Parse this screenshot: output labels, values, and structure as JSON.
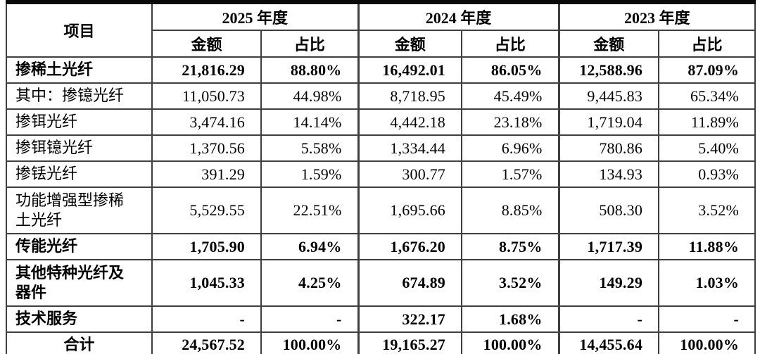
{
  "table": {
    "header": {
      "item_label": "项目",
      "year_groups": [
        {
          "label": "2025 年度"
        },
        {
          "label": "2024 年度"
        },
        {
          "label": "2023 年度"
        }
      ],
      "amount_label": "金额",
      "ratio_label": "占比"
    },
    "rows": [
      {
        "label": "掺稀土光纤",
        "bold": true,
        "total": false,
        "cells": [
          "21,816.29",
          "88.80%",
          "16,492.01",
          "86.05%",
          "12,588.96",
          "87.09%"
        ]
      },
      {
        "label": "其中：掺镱光纤",
        "bold": false,
        "total": false,
        "cells": [
          "11,050.73",
          "44.98%",
          "8,718.95",
          "45.49%",
          "9,445.83",
          "65.34%"
        ]
      },
      {
        "label": "掺铒光纤",
        "bold": false,
        "total": false,
        "cells": [
          "3,474.16",
          "14.14%",
          "4,442.18",
          "23.18%",
          "1,719.04",
          "11.89%"
        ]
      },
      {
        "label": "掺铒镱光纤",
        "bold": false,
        "total": false,
        "cells": [
          "1,370.56",
          "5.58%",
          "1,334.44",
          "6.96%",
          "780.86",
          "5.40%"
        ]
      },
      {
        "label": "掺铥光纤",
        "bold": false,
        "total": false,
        "cells": [
          "391.29",
          "1.59%",
          "300.77",
          "1.57%",
          "134.93",
          "0.93%"
        ]
      },
      {
        "label": "功能增强型掺稀土光纤",
        "bold": false,
        "total": false,
        "cells": [
          "5,529.55",
          "22.51%",
          "1,695.66",
          "8.85%",
          "508.30",
          "3.52%"
        ]
      },
      {
        "label": "传能光纤",
        "bold": true,
        "total": false,
        "cells": [
          "1,705.90",
          "6.94%",
          "1,676.20",
          "8.75%",
          "1,717.39",
          "11.88%"
        ]
      },
      {
        "label": "其他特种光纤及器件",
        "bold": true,
        "total": false,
        "cells": [
          "1,045.33",
          "4.25%",
          "674.89",
          "3.52%",
          "149.29",
          "1.03%"
        ]
      },
      {
        "label": "技术服务",
        "bold": true,
        "total": false,
        "cells": [
          "-",
          "-",
          "322.17",
          "1.68%",
          "-",
          "-"
        ]
      },
      {
        "label": "合计",
        "bold": true,
        "total": true,
        "cells": [
          "24,567.52",
          "100.00%",
          "19,165.27",
          "100.00%",
          "14,455.64",
          "100.00%"
        ]
      }
    ]
  },
  "chart_data": {
    "type": "table",
    "title": "",
    "columns": [
      "项目",
      "2025年度 金额",
      "2025年度 占比",
      "2024年度 金额",
      "2024年度 占比",
      "2023年度 金额",
      "2023年度 占比"
    ],
    "rows": [
      [
        "掺稀土光纤",
        21816.29,
        "88.80%",
        16492.01,
        "86.05%",
        12588.96,
        "87.09%"
      ],
      [
        "其中：掺镱光纤",
        11050.73,
        "44.98%",
        8718.95,
        "45.49%",
        9445.83,
        "65.34%"
      ],
      [
        "掺铒光纤",
        3474.16,
        "14.14%",
        4442.18,
        "23.18%",
        1719.04,
        "11.89%"
      ],
      [
        "掺铒镱光纤",
        1370.56,
        "5.58%",
        1334.44,
        "6.96%",
        780.86,
        "5.40%"
      ],
      [
        "掺铥光纤",
        391.29,
        "1.59%",
        300.77,
        "1.57%",
        134.93,
        "0.93%"
      ],
      [
        "功能增强型掺稀土光纤",
        5529.55,
        "22.51%",
        1695.66,
        "8.85%",
        508.3,
        "3.52%"
      ],
      [
        "传能光纤",
        1705.9,
        "6.94%",
        1676.2,
        "8.75%",
        1717.39,
        "11.88%"
      ],
      [
        "其他特种光纤及器件",
        1045.33,
        "4.25%",
        674.89,
        "3.52%",
        149.29,
        "1.03%"
      ],
      [
        "技术服务",
        null,
        null,
        322.17,
        "1.68%",
        null,
        null
      ],
      [
        "合计",
        24567.52,
        "100.00%",
        19165.27,
        "100.00%",
        14455.64,
        "100.00%"
      ]
    ]
  }
}
